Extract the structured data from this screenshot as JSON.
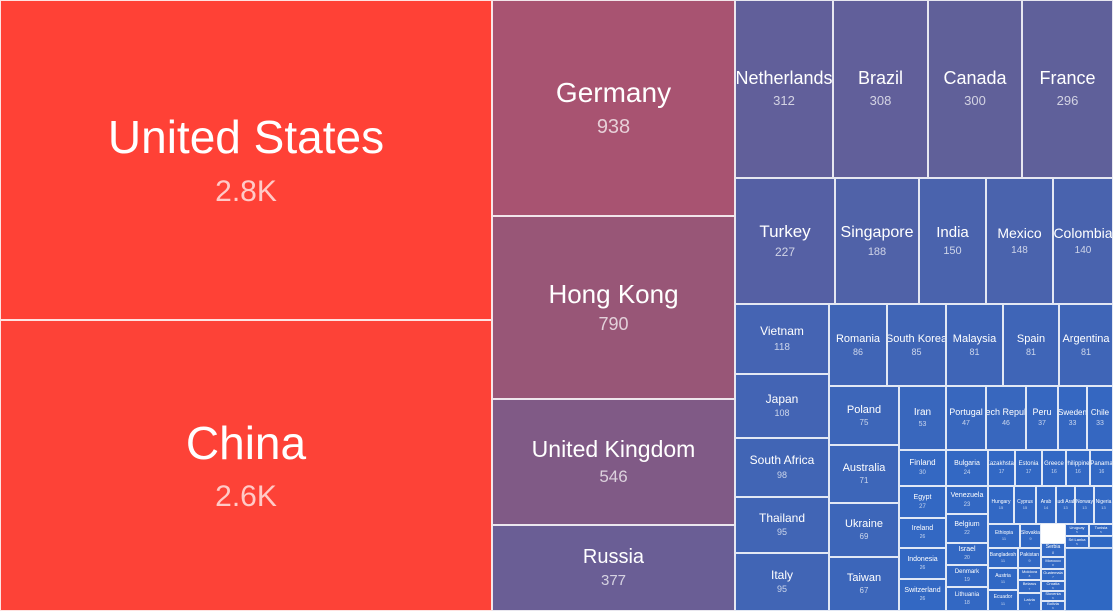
{
  "chart_data": {
    "type": "treemap",
    "title": "",
    "items": [
      {
        "name": "United States",
        "value": 2800,
        "label": "2.8K",
        "color": "#ff4136"
      },
      {
        "name": "China",
        "value": 2600,
        "label": "2.6K",
        "color": "#fd4237"
      },
      {
        "name": "Germany",
        "value": 938,
        "label": "938",
        "color": "#a85371"
      },
      {
        "name": "Hong Kong",
        "value": 790,
        "label": "790",
        "color": "#985677"
      },
      {
        "name": "United Kingdom",
        "value": 546,
        "label": "546",
        "color": "#805a86"
      },
      {
        "name": "Russia",
        "value": 377,
        "label": "377",
        "color": "#6a5e95"
      },
      {
        "name": "Netherlands",
        "value": 312,
        "label": "312",
        "color": "#615f9a"
      },
      {
        "name": "Brazil",
        "value": 308,
        "label": "308",
        "color": "#615f9a"
      },
      {
        "name": "Canada",
        "value": 300,
        "label": "300",
        "color": "#606099"
      },
      {
        "name": "France",
        "value": 296,
        "label": "296",
        "color": "#5f609a"
      },
      {
        "name": "Turkey",
        "value": 227,
        "label": "227",
        "color": "#5560a4"
      },
      {
        "name": "Singapore",
        "value": 188,
        "label": "188",
        "color": "#5062a8"
      },
      {
        "name": "India",
        "value": 150,
        "label": "150",
        "color": "#4a63ad"
      },
      {
        "name": "Mexico",
        "value": 148,
        "label": "148",
        "color": "#4a63ad"
      },
      {
        "name": "Colombia",
        "value": 140,
        "label": "140",
        "color": "#4963ae"
      },
      {
        "name": "Vietnam",
        "value": 118,
        "label": "118",
        "color": "#4564b3"
      },
      {
        "name": "Romania",
        "value": 86,
        "label": "86",
        "color": "#4065b6"
      },
      {
        "name": "South Korea",
        "value": 85,
        "label": "85",
        "color": "#4065b6"
      },
      {
        "name": "Malaysia",
        "value": 81,
        "label": "81",
        "color": "#3f65b7"
      },
      {
        "name": "Spain",
        "value": 81,
        "label": "81",
        "color": "#3f65b7"
      },
      {
        "name": "Argentina",
        "value": 81,
        "label": "81",
        "color": "#3f65b7"
      },
      {
        "name": "Japan",
        "value": 108,
        "label": "108",
        "color": "#4364b4"
      },
      {
        "name": "Poland",
        "value": 75,
        "label": "75",
        "color": "#3d66b9"
      },
      {
        "name": "Iran",
        "value": 53,
        "label": "53",
        "color": "#3967bd"
      },
      {
        "name": "Portugal",
        "value": 47,
        "label": "47",
        "color": "#3867be"
      },
      {
        "name": "Czech Republic",
        "value": 46,
        "label": "46",
        "color": "#3867be"
      },
      {
        "name": "Peru",
        "value": 37,
        "label": "37",
        "color": "#3667c0"
      },
      {
        "name": "Sweden",
        "value": 33,
        "label": "33",
        "color": "#3567c1"
      },
      {
        "name": "Chile",
        "value": 33,
        "label": "33",
        "color": "#3567c1"
      },
      {
        "name": "South Africa",
        "value": 98,
        "label": "98",
        "color": "#4165b5"
      },
      {
        "name": "Australia",
        "value": 71,
        "label": "71",
        "color": "#3d66b9"
      },
      {
        "name": "Finland",
        "value": 30,
        "label": "30",
        "color": "#3468c2"
      },
      {
        "name": "Bulgaria",
        "value": 24,
        "label": "24",
        "color": "#3368c3"
      },
      {
        "name": "Kazakhstan",
        "value": 17,
        "label": "17",
        "color": "#3268c4"
      },
      {
        "name": "Estonia",
        "value": 17,
        "label": "17",
        "color": "#3268c4"
      },
      {
        "name": "Greece",
        "value": 16,
        "label": "16",
        "color": "#3268c4"
      },
      {
        "name": "Philippines",
        "value": 16,
        "label": "16",
        "color": "#3268c4"
      },
      {
        "name": "Panama",
        "value": 16,
        "label": "16",
        "color": "#3268c4"
      },
      {
        "name": "Egypt",
        "value": 27,
        "label": "27",
        "color": "#3368c3"
      },
      {
        "name": "Venezuela",
        "value": 23,
        "label": "23",
        "color": "#3368c3"
      },
      {
        "name": "Hungary",
        "value": 15,
        "label": "15",
        "color": "#3268c4"
      },
      {
        "name": "Cyprus",
        "value": 15,
        "label": "15",
        "color": "#3268c4"
      },
      {
        "name": "Arab",
        "value": 14,
        "label": "14",
        "color": "#3268c4"
      },
      {
        "name": "Saudi Arabia",
        "value": 13,
        "label": "13",
        "color": "#3268c4"
      },
      {
        "name": "Norway",
        "value": 13,
        "label": "13",
        "color": "#3268c4"
      },
      {
        "name": "Nigeria",
        "value": 13,
        "label": "13",
        "color": "#3268c4"
      },
      {
        "name": "Thailand",
        "value": 95,
        "label": "95",
        "color": "#4165b5"
      },
      {
        "name": "Ukraine",
        "value": 69,
        "label": "69",
        "color": "#3d66b9"
      },
      {
        "name": "Ireland",
        "value": 26,
        "label": "26",
        "color": "#3368c3"
      },
      {
        "name": "Belgium",
        "value": 22,
        "label": "22",
        "color": "#3368c3"
      },
      {
        "name": "Ethiopia",
        "value": 11,
        "label": "11",
        "color": "#3168c4"
      },
      {
        "name": "Slovakia",
        "value": 9,
        "label": "9",
        "color": "#3168c4"
      },
      {
        "name": "Italy",
        "value": 95,
        "label": "95",
        "color": "#4165b5"
      },
      {
        "name": "Taiwan",
        "value": 67,
        "label": "67",
        "color": "#3c66ba"
      },
      {
        "name": "Indonesia",
        "value": 26,
        "label": "26",
        "color": "#3368c3"
      },
      {
        "name": "Israel",
        "value": 20,
        "label": "20",
        "color": "#3368c3"
      },
      {
        "name": "Denmark",
        "value": 19,
        "label": "19",
        "color": "#3368c3"
      },
      {
        "name": "Bangladesh",
        "value": 11,
        "label": "11",
        "color": "#3168c4"
      },
      {
        "name": "Pakistan",
        "value": 9,
        "label": "9",
        "color": "#3168c4"
      },
      {
        "name": "Serbia",
        "value": 8,
        "label": "8",
        "color": "#3168c4"
      },
      {
        "name": "Austria",
        "value": 11,
        "label": "11",
        "color": "#3168c4"
      },
      {
        "name": "Moldova",
        "value": 8,
        "label": "8",
        "color": "#3168c4"
      },
      {
        "name": "Morocco",
        "value": 8,
        "label": "8",
        "color": "#3168c4"
      },
      {
        "name": "Switzerland",
        "value": 26,
        "label": "26",
        "color": "#3368c3"
      },
      {
        "name": "Lithuania",
        "value": 18,
        "label": "18",
        "color": "#3368c3"
      },
      {
        "name": "Ecuador",
        "value": 11,
        "label": "11",
        "color": "#3168c4"
      },
      {
        "name": "Latvia",
        "value": 7,
        "label": "7",
        "color": "#3168c4"
      },
      {
        "name": "Belarus",
        "value": 7,
        "label": "7",
        "color": "#3168c4"
      },
      {
        "name": "Guatemala",
        "value": 7,
        "label": "7",
        "color": "#3168c4"
      },
      {
        "name": "Croatia",
        "value": 6,
        "label": "6",
        "color": "#3168c4"
      },
      {
        "name": "Slovenia",
        "value": 6,
        "label": "6",
        "color": "#3168c4"
      },
      {
        "name": "Bolivia",
        "value": 6,
        "label": "6",
        "color": "#3168c4"
      },
      {
        "name": "Uruguay",
        "value": 5,
        "label": "5",
        "color": "#3168c4"
      },
      {
        "name": "Tunisia",
        "value": 5,
        "label": "5",
        "color": "#3168c4"
      },
      {
        "name": "Sri Lanka",
        "value": 5,
        "label": "5",
        "color": "#3168c4"
      }
    ]
  }
}
